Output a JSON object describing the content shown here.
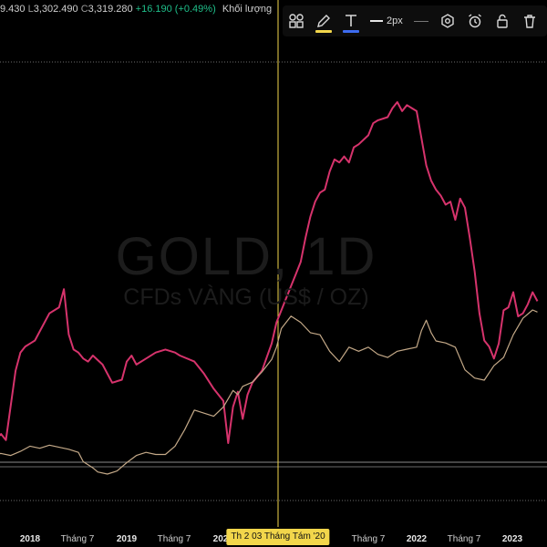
{
  "legend": {
    "open_fragment": "9.430",
    "low_key": "L",
    "low_value": "3,302.490",
    "close_key": "C",
    "close_value": "3,319.280",
    "change": "+16.190 (+0.49%)",
    "volume_label": "Khối lượng"
  },
  "watermark": {
    "symbol": "GOLD, 1D",
    "description": "CFDs VÀNG (US$ / OZ)"
  },
  "toolbar": {
    "tools": [
      {
        "icon": "templates-icon"
      },
      {
        "icon": "pencil-icon",
        "underline_color": "#f2d64b"
      },
      {
        "icon": "text-icon",
        "underline_color": "#3d6cf0"
      },
      {
        "icon": "line-width-icon"
      },
      {
        "icon": "settings-hexagon-icon"
      },
      {
        "icon": "alarm-clock-icon"
      },
      {
        "icon": "lock-icon"
      },
      {
        "icon": "trash-icon"
      }
    ],
    "line_width_label": "2px"
  },
  "crosshair": {
    "label": "Th 2 03 Tháng Tám '20",
    "color": "#f2d64b"
  },
  "colors": {
    "series_pink": "#d6336c",
    "series_gold": "#c4a988",
    "background": "#000000",
    "dotted_line": "#6b6b6b"
  },
  "chart_data": {
    "type": "line",
    "series": [
      {
        "x": [
          2017.6,
          2017.7,
          2017.75,
          2017.85,
          2017.9,
          2017.95,
          2018.0,
          2018.05,
          2018.1,
          2018.2,
          2018.3,
          2018.35,
          2018.4,
          2018.45,
          2018.5,
          2018.55,
          2018.6,
          2018.65,
          2018.75,
          2018.8,
          2018.85,
          2018.95,
          2019.0,
          2019.05,
          2019.1,
          2019.2,
          2019.3,
          2019.4,
          2019.5,
          2019.55,
          2019.7,
          2019.8,
          2019.9,
          2020.0,
          2020.05,
          2020.1,
          2020.15,
          2020.2,
          2020.25,
          2020.3,
          2020.4,
          2020.5,
          2020.55,
          2020.6,
          2020.65,
          2020.7,
          2020.75,
          2020.8,
          2020.85,
          2020.9,
          2020.95,
          2021.0,
          2021.05,
          2021.1,
          2021.15,
          2021.2,
          2021.25,
          2021.3,
          2021.35,
          2021.4,
          2021.5,
          2021.55,
          2021.6,
          2021.7,
          2021.75,
          2021.8,
          2021.85,
          2021.9,
          2021.95,
          2022.0,
          2022.05,
          2022.1,
          2022.15,
          2022.2,
          2022.25,
          2022.3,
          2022.35,
          2022.4,
          2022.45,
          2022.5,
          2022.55,
          2022.6,
          2022.65,
          2022.7,
          2022.75,
          2022.8,
          2022.85,
          2022.9,
          2022.95,
          2023.0,
          2023.05,
          2023.1,
          2023.15,
          2023.2,
          2023.25
        ],
        "y": [
          28,
          31,
          29,
          52,
          58,
          60,
          61,
          62,
          65,
          71,
          73,
          79,
          64,
          59,
          58,
          56,
          55,
          57,
          54,
          51,
          48,
          49,
          55,
          57,
          54,
          56,
          58,
          59,
          58,
          57,
          55,
          51,
          46,
          42,
          28,
          40,
          45,
          36,
          44,
          48,
          52,
          61,
          68,
          72,
          76,
          80,
          84,
          88,
          96,
          103,
          108,
          111,
          112,
          118,
          122,
          121,
          123,
          121,
          126,
          127,
          130,
          134,
          135,
          136,
          139,
          141,
          138,
          140,
          139,
          138,
          129,
          120,
          115,
          112,
          110,
          107,
          108,
          102,
          109,
          106,
          96,
          85,
          71,
          62,
          60,
          56,
          61,
          72,
          73,
          78,
          70,
          71,
          74,
          78,
          75
        ]
      },
      {
        "x": [
          2017.6,
          2017.7,
          2017.8,
          2017.9,
          2018.0,
          2018.1,
          2018.2,
          2018.3,
          2018.4,
          2018.5,
          2018.55,
          2018.6,
          2018.65,
          2018.7,
          2018.8,
          2018.9,
          2019.0,
          2019.1,
          2019.2,
          2019.3,
          2019.4,
          2019.5,
          2019.6,
          2019.7,
          2019.8,
          2019.9,
          2020.0,
          2020.05,
          2020.1,
          2020.15,
          2020.2,
          2020.3,
          2020.4,
          2020.5,
          2020.55,
          2020.6,
          2020.7,
          2020.8,
          2020.9,
          2021.0,
          2021.1,
          2021.2,
          2021.3,
          2021.4,
          2021.5,
          2021.6,
          2021.7,
          2021.8,
          2021.9,
          2022.0,
          2022.05,
          2022.1,
          2022.15,
          2022.2,
          2022.3,
          2022.4,
          2022.5,
          2022.6,
          2022.7,
          2022.8,
          2022.9,
          2023.0,
          2023.1,
          2023.2,
          2023.25
        ],
        "y": [
          1290,
          1295,
          1285,
          1305,
          1330,
          1320,
          1335,
          1325,
          1315,
          1300,
          1255,
          1240,
          1225,
          1205,
          1195,
          1210,
          1250,
          1285,
          1300,
          1290,
          1290,
          1330,
          1410,
          1505,
          1490,
          1475,
          1520,
          1560,
          1600,
          1580,
          1620,
          1640,
          1690,
          1750,
          1810,
          1900,
          1960,
          1930,
          1880,
          1870,
          1790,
          1740,
          1810,
          1790,
          1810,
          1775,
          1760,
          1790,
          1800,
          1810,
          1890,
          1940,
          1880,
          1840,
          1830,
          1810,
          1700,
          1660,
          1650,
          1720,
          1760,
          1870,
          1950,
          1990,
          1980
        ]
      }
    ],
    "x_tick_labels": [
      "2018",
      "Tháng 7",
      "2019",
      "Tháng 7",
      "202",
      "Tháng 7",
      "2022",
      "Tháng 7",
      "2023"
    ],
    "grid": false
  }
}
